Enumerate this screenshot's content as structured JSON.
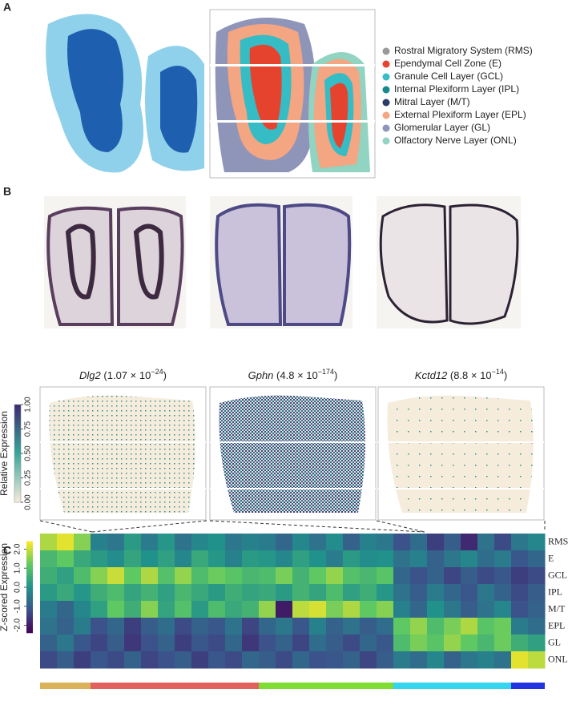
{
  "panels": {
    "a": "A",
    "b": "B",
    "c": "C"
  },
  "layers": [
    {
      "name": "Rostral Migratory System (RMS)",
      "color": "#9a9a9a"
    },
    {
      "name": "Ependymal Cell Zone (E)",
      "color": "#e6432f"
    },
    {
      "name": "Granule Cell Layer (GCL)",
      "color": "#35bcc4"
    },
    {
      "name": "Internal Plexiform Layer (IPL)",
      "color": "#17898b"
    },
    {
      "name": "Mitral Layer (M/T)",
      "color": "#2c3a6c"
    },
    {
      "name": "External Plexiform Layer (EPL)",
      "color": "#f4a582"
    },
    {
      "name": "Glomerular Layer (GL)",
      "color": "#8f95b9"
    },
    {
      "name": "Olfactory Nerve Layer (ONL)",
      "color": "#90d4c1"
    }
  ],
  "genes": [
    {
      "gene": "Dlg2",
      "mantissa": "1.07",
      "base": "× 10",
      "exponent": "−24"
    },
    {
      "gene": "Gphn",
      "mantissa": "4.8",
      "base": "× 10",
      "exponent": "−174"
    },
    {
      "gene": "Kctd12",
      "mantissa": "8.8",
      "base": "× 10",
      "exponent": "−14"
    }
  ],
  "expression_colorbar": {
    "label": "Relative Expression",
    "lim": [
      0,
      1
    ],
    "ticks": [
      {
        "value": 0,
        "label": "0.00"
      },
      0.25,
      {
        "value": 0.5,
        "label": "0.50"
      },
      0.75,
      {
        "value": 1,
        "label": "1.00"
      }
    ]
  },
  "chart_data": {
    "type": "heatmap",
    "colorbar_label": "Z-scored Expression",
    "zlim": [
      -2.4,
      2.4
    ],
    "zticks": [
      {
        "value": 2,
        "label": "2.0"
      },
      {
        "value": 1,
        "label": "1.0"
      },
      {
        "value": 0,
        "label": "0.0"
      },
      {
        "value": -1,
        "label": "-1.0"
      },
      {
        "value": -2,
        "label": "-2.0"
      }
    ],
    "column_groups": [
      {
        "color": "#d9b25a",
        "count": 3
      },
      {
        "color": "#e0615d",
        "count": 10
      },
      {
        "color": "#7fdc32",
        "count": 8
      },
      {
        "color": "#33d6ee",
        "count": 7
      },
      {
        "color": "#2233e0",
        "count": 2
      }
    ],
    "rows": [
      {
        "name": "RMS",
        "values": [
          1.8,
          2.2,
          1.5,
          -0.3,
          -0.5,
          0.2,
          -0.4,
          0.1,
          -0.6,
          -0.2,
          0.0,
          -0.5,
          -0.3,
          -0.4,
          -0.8,
          -0.2,
          -0.6,
          -0.1,
          -0.9,
          -0.3,
          -0.5,
          -1.2,
          -0.7,
          -1.5,
          -1.0,
          -1.8,
          -0.6,
          -1.3,
          -0.5,
          -0.2
        ]
      },
      {
        "name": "E",
        "values": [
          0.8,
          1.2,
          0.5,
          0.2,
          -0.1,
          0.4,
          0.0,
          0.3,
          -0.2,
          0.5,
          0.1,
          -0.3,
          0.2,
          0.1,
          -0.2,
          0.3,
          0.0,
          -0.4,
          0.2,
          -0.1,
          0.0,
          -0.6,
          -0.3,
          -0.9,
          -0.5,
          -0.2,
          -0.7,
          -0.4,
          -1.1,
          -0.8
        ]
      },
      {
        "name": "GCL",
        "values": [
          0.6,
          0.3,
          0.9,
          1.5,
          2.0,
          1.2,
          1.8,
          1.0,
          1.6,
          0.9,
          1.3,
          1.1,
          0.8,
          0.9,
          1.4,
          0.7,
          1.2,
          1.6,
          1.0,
          0.8,
          1.1,
          -0.8,
          -1.2,
          -0.9,
          -1.4,
          -1.0,
          -1.3,
          -1.1,
          -1.5,
          -1.3
        ]
      },
      {
        "name": "IPL",
        "values": [
          0.2,
          0.5,
          0.1,
          0.6,
          0.9,
          0.4,
          0.7,
          0.3,
          0.8,
          0.5,
          0.2,
          0.6,
          0.4,
          0.5,
          0.2,
          0.7,
          0.4,
          0.9,
          0.3,
          0.6,
          0.1,
          -0.6,
          -1.0,
          -0.4,
          -0.8,
          -1.1,
          -0.5,
          -0.9,
          -1.3,
          -1.0
        ]
      },
      {
        "name": "M/T",
        "values": [
          -0.4,
          -0.8,
          -0.2,
          0.3,
          1.2,
          0.6,
          1.5,
          0.4,
          1.0,
          0.2,
          0.9,
          0.5,
          0.7,
          1.6,
          -2.0,
          1.9,
          2.1,
          1.4,
          1.8,
          1.2,
          1.5,
          -0.3,
          -0.8,
          0.0,
          -0.5,
          -1.0,
          -0.6,
          -0.2,
          -1.2,
          -0.9
        ]
      },
      {
        "name": "EPL",
        "values": [
          -0.6,
          -0.9,
          -0.4,
          -1.2,
          -0.8,
          -1.5,
          -1.0,
          -0.7,
          -1.3,
          -0.9,
          -1.1,
          -0.6,
          -1.4,
          -0.8,
          -0.5,
          -1.1,
          -0.3,
          -0.9,
          -0.6,
          -1.0,
          -0.7,
          1.2,
          1.6,
          0.9,
          1.4,
          1.8,
          1.1,
          1.3,
          -0.4,
          -0.7
        ]
      },
      {
        "name": "GL",
        "values": [
          -0.9,
          -0.5,
          -1.1,
          -1.4,
          -1.0,
          -1.6,
          -1.2,
          -0.9,
          -1.5,
          -1.1,
          -1.3,
          -0.8,
          -1.6,
          -1.2,
          -0.9,
          -1.4,
          -0.7,
          -1.0,
          -1.3,
          -0.8,
          -1.1,
          0.9,
          1.4,
          1.1,
          1.6,
          1.2,
          0.8,
          1.3,
          0.6,
          0.3
        ]
      },
      {
        "name": "ONL",
        "values": [
          -1.3,
          -1.0,
          -1.5,
          -1.1,
          -1.3,
          -0.9,
          -1.4,
          -1.2,
          -1.0,
          -1.5,
          -1.1,
          -1.3,
          -0.8,
          -1.0,
          -1.3,
          -0.8,
          -1.2,
          -1.1,
          -0.9,
          -1.4,
          -1.0,
          -0.4,
          -0.7,
          -0.2,
          -0.9,
          -0.5,
          -0.3,
          -0.6,
          2.2,
          1.9
        ]
      }
    ]
  }
}
